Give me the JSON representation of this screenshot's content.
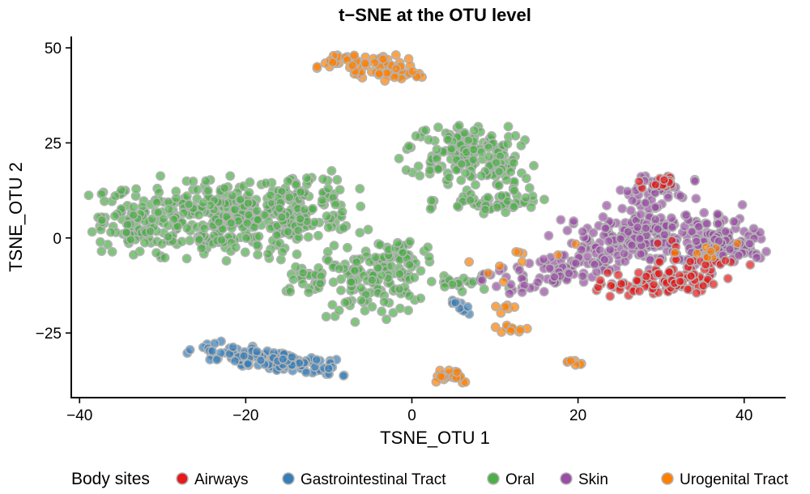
{
  "chart_data": {
    "type": "scatter",
    "title": "t−SNE at the OTU level",
    "xlabel": "TSNE_OTU 1",
    "ylabel": "TSNE_OTU 2",
    "xlim": [
      -41,
      45
    ],
    "ylim": [
      -42,
      53
    ],
    "xticks": [
      -40,
      -20,
      0,
      20,
      40
    ],
    "xtick_labels": [
      "−40",
      "−20",
      "0",
      "20",
      "40"
    ],
    "yticks": [
      -25,
      0,
      25,
      50
    ],
    "ytick_labels": [
      "−25",
      "0",
      "25",
      "50"
    ],
    "grid": false,
    "legend": {
      "title": "Body sites",
      "placement": "bottom",
      "entries": [
        {
          "name": "Airways",
          "color": "#e41a1c"
        },
        {
          "name": "Gastrointestinal Tract",
          "color": "#377eb8"
        },
        {
          "name": "Oral",
          "color": "#4daf4a"
        },
        {
          "name": "Skin",
          "color": "#984ea3"
        },
        {
          "name": "Urogenital Tract",
          "color": "#ff7f00"
        }
      ]
    },
    "series": [
      {
        "name": "Oral",
        "color": "#4daf4a",
        "clusters": [
          {
            "cx": -22,
            "cy": 5,
            "sx": 7.5,
            "sy": 5,
            "rot": -0.05,
            "n": 380
          },
          {
            "cx": -34,
            "cy": 3,
            "sx": 2.2,
            "sy": 4.5,
            "rot": 0,
            "n": 50
          },
          {
            "cx": -13,
            "cy": 10,
            "sx": 3,
            "sy": 4,
            "rot": 0,
            "n": 60
          },
          {
            "cx": -5,
            "cy": -12,
            "sx": 3.2,
            "sy": 4.2,
            "rot": 0,
            "n": 110
          },
          {
            "cx": -1,
            "cy": -5,
            "sx": 1.8,
            "sy": 3,
            "rot": 0,
            "n": 40
          },
          {
            "cx": -12,
            "cy": -10,
            "sx": 2.2,
            "sy": 2.5,
            "rot": 0,
            "n": 30
          },
          {
            "cx": 6,
            "cy": 23,
            "sx": 3.5,
            "sy": 3.5,
            "rot": 0,
            "n": 120
          },
          {
            "cx": 8,
            "cy": 17,
            "sx": 3,
            "sy": 2,
            "rot": 0,
            "n": 40
          },
          {
            "cx": 10,
            "cy": 9,
            "sx": 3.5,
            "sy": 1.6,
            "rot": 0.2,
            "n": 55
          },
          {
            "cx": 6,
            "cy": -12,
            "sx": 2.5,
            "sy": 1.3,
            "rot": 0,
            "n": 22
          }
        ]
      },
      {
        "name": "Gastrointestinal Tract",
        "color": "#377eb8",
        "clusters": [
          {
            "cx": -17,
            "cy": -32,
            "sx": 4.5,
            "sy": 1.2,
            "rot": -0.32,
            "n": 150
          },
          {
            "cx": 6,
            "cy": -18.5,
            "sx": 0.8,
            "sy": 1,
            "rot": 0,
            "n": 10
          }
        ]
      },
      {
        "name": "Skin",
        "color": "#984ea3",
        "clusters": [
          {
            "cx": 30,
            "cy": 0,
            "sx": 6,
            "sy": 3.8,
            "rot": 0,
            "n": 230
          },
          {
            "cx": 37,
            "cy": -3,
            "sx": 2.5,
            "sy": 3,
            "rot": 0,
            "n": 60
          },
          {
            "cx": 18,
            "cy": -8,
            "sx": 5.5,
            "sy": 2,
            "rot": 0.55,
            "n": 90
          },
          {
            "cx": 29,
            "cy": 12,
            "sx": 2.4,
            "sy": 2.8,
            "rot": 0,
            "n": 45
          }
        ]
      },
      {
        "name": "Airways",
        "color": "#e41a1c",
        "clusters": [
          {
            "cx": 29,
            "cy": -12,
            "sx": 3.5,
            "sy": 1.8,
            "rot": 0,
            "n": 100
          },
          {
            "cx": 30,
            "cy": 14.5,
            "sx": 1.4,
            "sy": 1,
            "rot": 0,
            "n": 16
          },
          {
            "cx": 34,
            "cy": -6,
            "sx": 3,
            "sy": 2.5,
            "rot": 0,
            "n": 25
          }
        ]
      },
      {
        "name": "Urogenital Tract",
        "color": "#ff7f00",
        "clusters": [
          {
            "cx": -4.5,
            "cy": 45,
            "sx": 3.2,
            "sy": 1.8,
            "rot": -0.35,
            "n": 75
          },
          {
            "cx": 4.5,
            "cy": -36,
            "sx": 1.4,
            "sy": 1.1,
            "rot": 0,
            "n": 28
          },
          {
            "cx": 12,
            "cy": -24,
            "sx": 1.1,
            "sy": 0.6,
            "rot": 0,
            "n": 10
          },
          {
            "cx": 11.5,
            "cy": -18.5,
            "sx": 0.7,
            "sy": 0.9,
            "rot": 0,
            "n": 6
          },
          {
            "cx": 19.5,
            "cy": -32.5,
            "sx": 0.7,
            "sy": 0.6,
            "rot": 0,
            "n": 7
          },
          {
            "cx": 15,
            "cy": -5,
            "sx": 4,
            "sy": 1.6,
            "rot": 0.55,
            "n": 10
          },
          {
            "cx": 36,
            "cy": -4,
            "sx": 3,
            "sy": 2,
            "rot": 0,
            "n": 8
          }
        ]
      }
    ]
  }
}
